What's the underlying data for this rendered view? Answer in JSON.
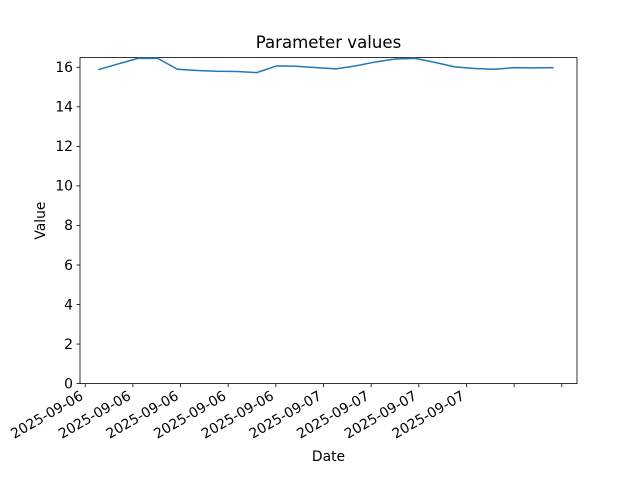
{
  "chart_data": {
    "type": "line",
    "title": "Parameter values",
    "xlabel": "Date",
    "ylabel": "Value",
    "grid": false,
    "legend": null,
    "line_color": "#1f77b4",
    "axis_color": "#000000",
    "background_color": "#ffffff",
    "xlim": [
      -0.924,
      24.176
    ],
    "ylim": [
      0,
      16.49
    ],
    "y_ticks": [
      0,
      2,
      4,
      6,
      8,
      10,
      12,
      14,
      16
    ],
    "x_tick_rotation": 30,
    "x_ticks": [
      {
        "pos": -0.661,
        "label": "2025-09-06"
      },
      {
        "pos": 1.746,
        "label": "2025-09-06"
      },
      {
        "pos": 4.153,
        "label": "2025-09-06"
      },
      {
        "pos": 6.56,
        "label": "2025-09-06"
      },
      {
        "pos": 8.967,
        "label": "2025-09-06"
      },
      {
        "pos": 11.374,
        "label": "2025-09-07"
      },
      {
        "pos": 13.781,
        "label": "2025-09-07"
      },
      {
        "pos": 16.188,
        "label": "2025-09-07"
      },
      {
        "pos": 18.595,
        "label": "2025-09-07"
      },
      {
        "pos": 21.002,
        "label": ""
      },
      {
        "pos": 23.409,
        "label": ""
      }
    ],
    "series": [
      {
        "name": "Parameter",
        "color": "#1f77b4",
        "x": [
          0,
          1,
          2,
          3,
          4,
          5,
          6,
          7,
          8,
          9,
          10,
          11,
          12,
          13,
          14,
          15,
          16,
          17,
          18,
          19,
          20,
          21,
          22,
          23
        ],
        "values": [
          15.88,
          16.17,
          16.45,
          16.45,
          15.9,
          15.84,
          15.8,
          15.79,
          15.73,
          16.07,
          16.05,
          15.98,
          15.92,
          16.07,
          16.27,
          16.42,
          16.45,
          16.25,
          16.02,
          15.94,
          15.9,
          15.98,
          15.97,
          15.98
        ]
      }
    ]
  }
}
